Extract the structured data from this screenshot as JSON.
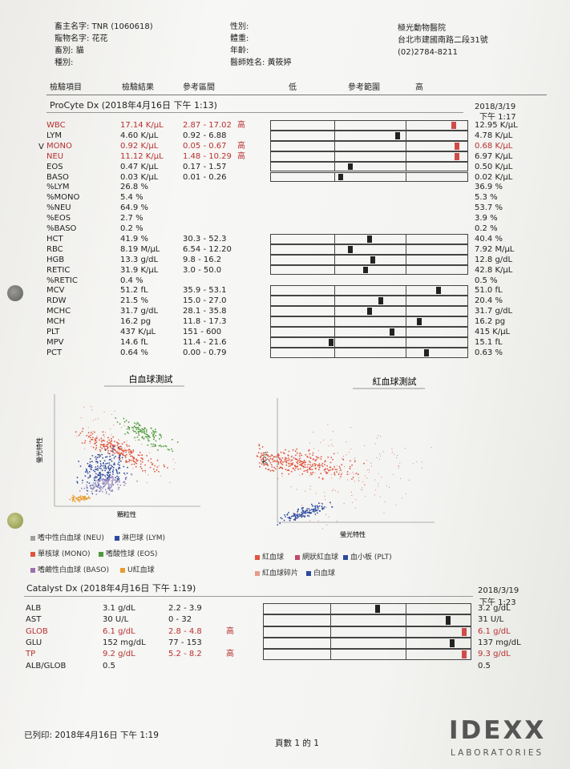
{
  "header": {
    "owner_label": "畜主名字:",
    "owner_value": "TNR (1060618)",
    "pet_label": "寵物名字:",
    "pet_value": "花花",
    "species_label": "畜別:",
    "species_value": "貓",
    "breed_label": "種別:",
    "sex_label": "性別:",
    "weight_label": "體重:",
    "age_label": "年齡:",
    "vet_label": "醫師姓名:",
    "vet_value": "黃筱婷",
    "clinic_name": "極光動物醫院",
    "clinic_address": "台北市建國南路二段31號",
    "clinic_phone": "(02)2784-8211"
  },
  "columns": {
    "item": "檢驗項目",
    "result": "檢驗結果",
    "ref": "參考區間",
    "low": "低",
    "range": "參考範圍",
    "high": "高"
  },
  "procyte": {
    "title": "ProCyte Dx (2018年4月16日 下午 1:13)",
    "prev_date": "2018/3/19",
    "prev_time": "下午 1:17",
    "rows": [
      {
        "name": "WBC",
        "result": "17.14 K/μL",
        "ref": "2.87 - 17.02",
        "flag": "高",
        "abn": true,
        "prev": "12.95 K/μL",
        "prev_abn": false,
        "pos": 0.94,
        "group": 0
      },
      {
        "name": "LYM",
        "result": "4.60 K/μL",
        "ref": "0.92 - 6.88",
        "flag": "",
        "abn": false,
        "prev": "4.78 K/μL",
        "prev_abn": false,
        "pos": 0.65,
        "group": 0
      },
      {
        "name": "MONO",
        "result": "0.92 K/μL",
        "ref": "0.05 - 0.67",
        "flag": "高",
        "abn": true,
        "prev": "0.68 K/μL",
        "prev_abn": true,
        "pos": 0.96,
        "group": 0,
        "tick": "V"
      },
      {
        "name": "NEU",
        "result": "11.12 K/μL",
        "ref": "1.48 - 10.29",
        "flag": "高",
        "abn": true,
        "prev": "6.97 K/μL",
        "prev_abn": false,
        "pos": 0.96,
        "group": 0
      },
      {
        "name": "EOS",
        "result": "0.47 K/μL",
        "ref": "0.17 - 1.57",
        "flag": "",
        "abn": false,
        "prev": "0.50 K/μL",
        "prev_abn": false,
        "pos": 0.4,
        "group": 0
      },
      {
        "name": "BASO",
        "result": "0.03 K/μL",
        "ref": "0.01 - 0.26",
        "flag": "",
        "abn": false,
        "prev": "0.02 K/μL",
        "prev_abn": false,
        "pos": 0.35,
        "group": 0
      },
      {
        "name": "%LYM",
        "result": "26.8 %",
        "ref": "",
        "flag": "",
        "abn": false,
        "prev": "36.9 %",
        "prev_abn": false,
        "pos": null
      },
      {
        "name": "%MONO",
        "result": "5.4 %",
        "ref": "",
        "flag": "",
        "abn": false,
        "prev": "5.3 %",
        "prev_abn": false,
        "pos": null
      },
      {
        "name": "%NEU",
        "result": "64.9 %",
        "ref": "",
        "flag": "",
        "abn": false,
        "prev": "53.7 %",
        "prev_abn": false,
        "pos": null
      },
      {
        "name": "%EOS",
        "result": "2.7 %",
        "ref": "",
        "flag": "",
        "abn": false,
        "prev": "3.9 %",
        "prev_abn": false,
        "pos": null
      },
      {
        "name": "%BASO",
        "result": "0.2 %",
        "ref": "",
        "flag": "",
        "abn": false,
        "prev": "0.2 %",
        "prev_abn": false,
        "pos": null
      },
      {
        "name": "HCT",
        "result": "41.9 %",
        "ref": "30.3 - 52.3",
        "flag": "",
        "abn": false,
        "prev": "40.4 %",
        "prev_abn": false,
        "pos": 0.5,
        "group": 1
      },
      {
        "name": "RBC",
        "result": "8.19 M/μL",
        "ref": "6.54 - 12.20",
        "flag": "",
        "abn": false,
        "prev": "7.92 M/μL",
        "prev_abn": false,
        "pos": 0.4,
        "group": 1
      },
      {
        "name": "HGB",
        "result": "13.3 g/dL",
        "ref": "9.8 - 16.2",
        "flag": "",
        "abn": false,
        "prev": "12.8 g/dL",
        "prev_abn": false,
        "pos": 0.52,
        "group": 1
      },
      {
        "name": "RETIC",
        "result": "31.9 K/μL",
        "ref": "3.0 - 50.0",
        "flag": "",
        "abn": false,
        "prev": "42.8 K/μL",
        "prev_abn": false,
        "pos": 0.48,
        "group": 1
      },
      {
        "name": "%RETIC",
        "result": "0.4 %",
        "ref": "",
        "flag": "",
        "abn": false,
        "prev": "0.5 %",
        "prev_abn": false,
        "pos": null
      },
      {
        "name": "MCV",
        "result": "51.2 fL",
        "ref": "35.9 - 53.1",
        "flag": "",
        "abn": false,
        "prev": "51.0 fL",
        "prev_abn": false,
        "pos": 0.86,
        "group": 2
      },
      {
        "name": "RDW",
        "result": "21.5 %",
        "ref": "15.0 - 27.0",
        "flag": "",
        "abn": false,
        "prev": "20.4 %",
        "prev_abn": false,
        "pos": 0.56,
        "group": 2
      },
      {
        "name": "MCHC",
        "result": "31.7 g/dL",
        "ref": "28.1 - 35.8",
        "flag": "",
        "abn": false,
        "prev": "31.7 g/dL",
        "prev_abn": false,
        "pos": 0.5,
        "group": 2
      },
      {
        "name": "MCH",
        "result": "16.2 pg",
        "ref": "11.8 - 17.3",
        "flag": "",
        "abn": false,
        "prev": "16.2 pg",
        "prev_abn": false,
        "pos": 0.76,
        "group": 2
      },
      {
        "name": "PLT",
        "result": "437 K/μL",
        "ref": "151 - 600",
        "flag": "",
        "abn": false,
        "prev": "415 K/μL",
        "prev_abn": false,
        "pos": 0.62,
        "group": 2
      },
      {
        "name": "MPV",
        "result": "14.6 fL",
        "ref": "11.4 - 21.6",
        "flag": "",
        "abn": false,
        "prev": "15.1 fL",
        "prev_abn": false,
        "pos": 0.3,
        "group": 2
      },
      {
        "name": "PCT",
        "result": "0.64 %",
        "ref": "0.00 - 0.79",
        "flag": "",
        "abn": false,
        "prev": "0.63 %",
        "prev_abn": false,
        "pos": 0.8,
        "group": 2
      }
    ]
  },
  "wbc_plot": {
    "title": "白血球測試",
    "ylabel": "螢光特性",
    "xlabel": "顆粒性"
  },
  "rbc_plot": {
    "title": "紅血球測試",
    "ylabel": "大小",
    "xlabel": "螢光特性"
  },
  "wbc_legend": [
    {
      "label": "嗜中性白血球 (NEU)",
      "color": "#9e9e9e"
    },
    {
      "label": "淋巴球 (LYM)",
      "color": "#2d4aa0"
    },
    {
      "label": "單核球 (MONO)",
      "color": "#e0553d"
    },
    {
      "label": "嗜酸性球 (EOS)",
      "color": "#4f9a3a"
    },
    {
      "label": "嗜鹼性白血球 (BASO)",
      "color": "#9b6fb0"
    },
    {
      "label": "U紅血球",
      "color": "#e89b2e"
    }
  ],
  "rbc_legend": [
    {
      "label": "紅血球",
      "color": "#e0553d"
    },
    {
      "label": "網狀紅血球",
      "color": "#c04a6a"
    },
    {
      "label": "血小板 (PLT)",
      "color": "#2d4aa0"
    },
    {
      "label": "紅血球碎片",
      "color": "#e89b8b"
    },
    {
      "label": "白血球",
      "color": "#2d4aa0"
    }
  ],
  "catalyst": {
    "title": "Catalyst Dx (2018年4月16日 下午 1:19)",
    "prev_date": "2018/3/19",
    "prev_time": "下午 1:23",
    "rows": [
      {
        "name": "ALB",
        "result": "3.1 g/dL",
        "ref": "2.2 - 3.9",
        "flag": "",
        "abn": false,
        "prev": "3.2 g/dL",
        "prev_abn": false,
        "pos": 0.55
      },
      {
        "name": "AST",
        "result": "30 U/L",
        "ref": "0 - 32",
        "flag": "",
        "abn": false,
        "prev": "31 U/L",
        "prev_abn": false,
        "pos": 0.9
      },
      {
        "name": "GLOB",
        "result": "6.1 g/dL",
        "ref": "2.8 - 4.8",
        "flag": "高",
        "abn": true,
        "prev": "6.1 g/dL",
        "prev_abn": true,
        "pos": 0.98
      },
      {
        "name": "GLU",
        "result": "152 mg/dL",
        "ref": "77 - 153",
        "flag": "",
        "abn": false,
        "prev": "137 mg/dL",
        "prev_abn": false,
        "pos": 0.92
      },
      {
        "name": "TP",
        "result": "9.2 g/dL",
        "ref": "5.2 - 8.2",
        "flag": "高",
        "abn": true,
        "prev": "9.3 g/dL",
        "prev_abn": true,
        "pos": 0.98
      },
      {
        "name": "ALB/GLOB",
        "result": "0.5",
        "ref": "",
        "flag": "",
        "abn": false,
        "prev": "0.5",
        "prev_abn": false,
        "pos": null
      }
    ]
  },
  "footer": {
    "printed": "已列印: 2018年4月16日 下午 1:19",
    "page": "頁數 1 的 1",
    "logo": "IDEXX",
    "logo_sub": "LABORATORIES"
  }
}
